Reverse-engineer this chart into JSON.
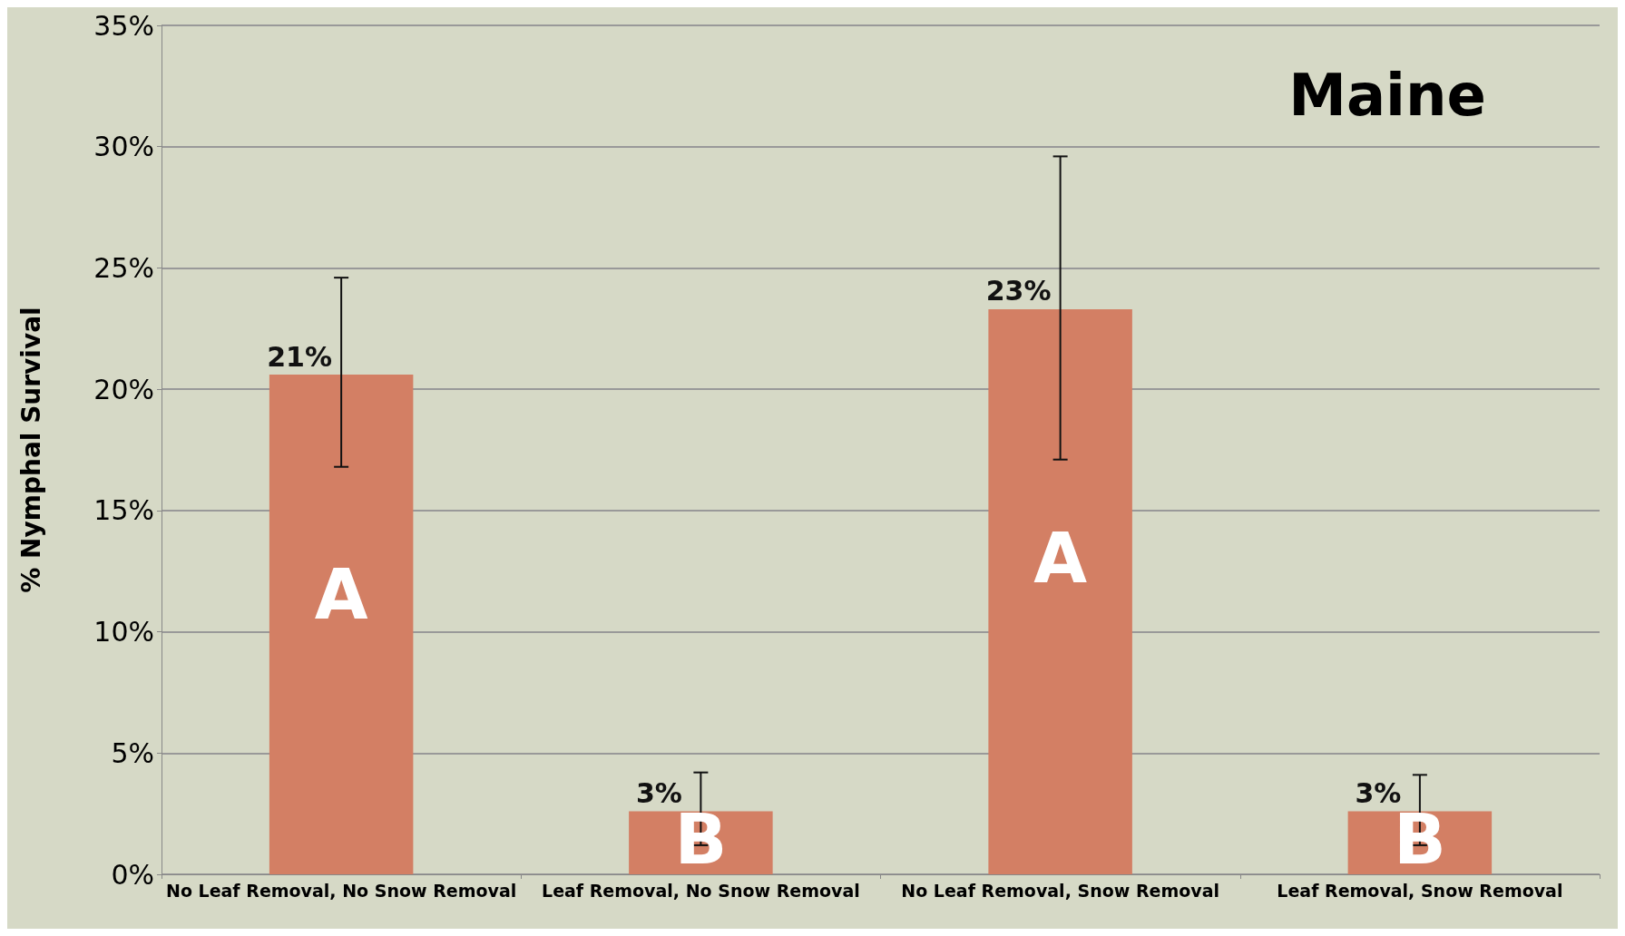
{
  "chart_data": {
    "type": "bar",
    "title": "Maine",
    "ylabel": "% Nymphal Survival",
    "categories": [
      "No Leaf Removal, No Snow Removal",
      "Leaf Removal, No Snow Removal",
      "No Leaf Removal, Snow Removal",
      "Leaf Removal, Snow Removal"
    ],
    "values": [
      20.6,
      2.6,
      23.3,
      2.6
    ],
    "color": "#d37f64",
    "errors": [
      [
        16.8,
        24.6
      ],
      [
        1.2,
        4.2
      ],
      [
        17.1,
        29.6
      ],
      [
        1.2,
        4.1
      ]
    ],
    "value_labels": [
      "21%",
      "3%",
      "23%",
      "3%"
    ],
    "annotations": [
      "A",
      "B",
      "A",
      "B"
    ],
    "ylim": [
      0,
      35
    ],
    "yticks": [
      {
        "value": 0,
        "label": "0%"
      },
      {
        "value": 5,
        "label": "5%"
      },
      {
        "value": 10,
        "label": "10%"
      },
      {
        "value": 15,
        "label": "15%"
      },
      {
        "value": 20,
        "label": "20%"
      },
      {
        "value": 25,
        "label": "25%"
      },
      {
        "value": 30,
        "label": "30%"
      },
      {
        "value": 35,
        "label": "35%"
      }
    ],
    "grid": "y"
  }
}
